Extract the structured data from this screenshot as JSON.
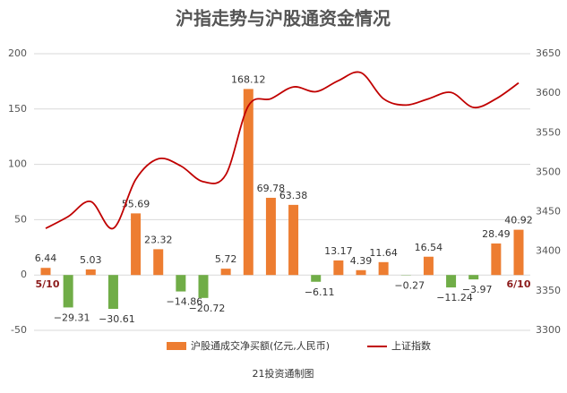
{
  "chart_data": {
    "type": "bar_line",
    "title": "沪指走势与沪股通资金情况",
    "source": "21投资通制图",
    "categories": [
      "5/10",
      null,
      null,
      null,
      null,
      null,
      null,
      null,
      null,
      null,
      null,
      null,
      null,
      null,
      null,
      null,
      null,
      null,
      null,
      null,
      null,
      "6/10"
    ],
    "series": [
      {
        "name": "沪股通成交净买额(亿元,人民币)",
        "color": "#ed7d31",
        "type": "bar",
        "values": [
          6.44,
          -29.31,
          5.03,
          -30.61,
          55.69,
          23.32,
          -14.86,
          -20.72,
          5.72,
          168.12,
          69.78,
          63.38,
          -6.11,
          13.17,
          4.39,
          11.64,
          -0.27,
          16.54,
          -11.24,
          -3.97,
          28.49,
          40.92
        ],
        "value_labels": [
          "6.44",
          "−29.31",
          "5.03",
          "−30.61",
          "55.69",
          "23.32",
          "−14.86",
          "−20.72",
          "5.72",
          "168.12",
          "69.78",
          "63.38",
          "−6.11",
          "13.17",
          "4.39",
          "11.64",
          "−0.27",
          "16.54",
          "−11.24",
          "−3.97",
          "28.49",
          "40.92"
        ],
        "negative_color": "#70ad47"
      },
      {
        "name": "上证指数",
        "color": "#c00000",
        "type": "line",
        "axis": "y2",
        "values": [
          3429,
          3444,
          3463,
          3429,
          3491,
          3517,
          3508,
          3488,
          3497,
          3584,
          3593,
          3608,
          3602,
          3616,
          3626,
          3593,
          3585,
          3593,
          3601,
          3582,
          3593,
          3613
        ]
      }
    ],
    "ylim": [
      -50,
      200
    ],
    "yticks": [
      -50,
      0,
      50,
      100,
      150,
      200
    ],
    "y2lim": [
      3300,
      3650
    ],
    "y2ticks": [
      3300,
      3350,
      3400,
      3450,
      3500,
      3550,
      3600,
      3650
    ],
    "grid": true,
    "legend": "bottom"
  }
}
